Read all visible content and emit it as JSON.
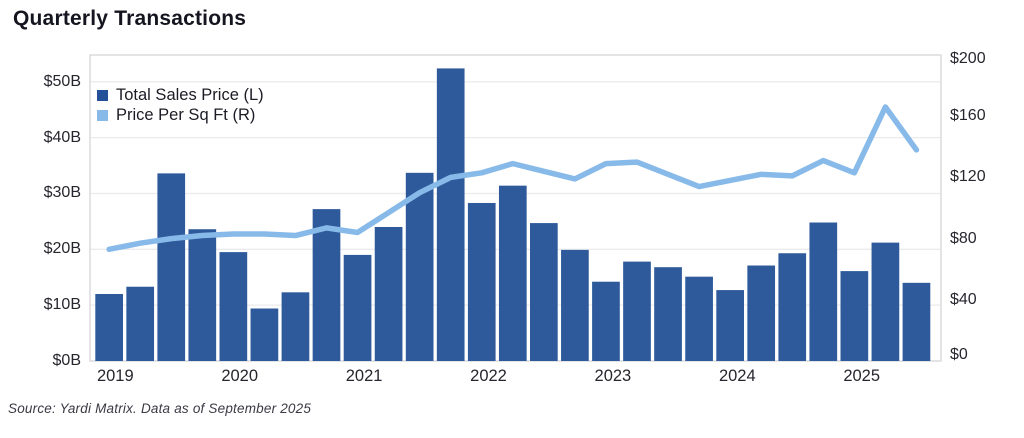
{
  "title": "Quarterly Transactions",
  "source_note": "Source: Yardi Matrix. Data as of September 2025",
  "legend": [
    {
      "label": "Total Sales Price (L)",
      "color": "#24509a"
    },
    {
      "label": "Price Per Sq Ft (R)",
      "color": "#88bae9"
    }
  ],
  "colors": {
    "bar": "#2e5a9b",
    "line": "#88bae9",
    "grid": "#ebebee",
    "plot_border": "#d6d6da",
    "text": "#26262e"
  },
  "chart_data": {
    "type": "bar",
    "title": "Quarterly Transactions",
    "categories": [
      "2019 Q1",
      "2019 Q2",
      "2019 Q3",
      "2019 Q4",
      "2020 Q1",
      "2020 Q2",
      "2020 Q3",
      "2020 Q4",
      "2021 Q1",
      "2021 Q2",
      "2021 Q3",
      "2021 Q4",
      "2022 Q1",
      "2022 Q2",
      "2022 Q3",
      "2022 Q4",
      "2023 Q1",
      "2023 Q2",
      "2023 Q3",
      "2023 Q4",
      "2024 Q1",
      "2024 Q2",
      "2024 Q3",
      "2024 Q4",
      "2025 Q1",
      "2025 Q2",
      "2025 Q3"
    ],
    "series": [
      {
        "name": "Total Sales Price (L)",
        "type": "bar",
        "axis": "left",
        "unit": "billion USD",
        "values": [
          12.0,
          13.3,
          33.6,
          23.6,
          19.5,
          9.4,
          12.3,
          27.2,
          19.0,
          24.0,
          33.7,
          52.4,
          28.3,
          31.4,
          24.7,
          19.9,
          14.2,
          17.8,
          16.8,
          15.1,
          12.7,
          17.1,
          19.3,
          24.8,
          16.1,
          21.2,
          14.0
        ]
      },
      {
        "name": "Price Per Sq Ft (R)",
        "type": "line",
        "axis": "right",
        "unit": "USD per sq ft",
        "values": [
          73,
          77,
          80,
          82,
          83,
          83,
          82,
          87,
          84,
          97,
          110,
          120,
          123,
          129,
          124,
          119,
          129,
          130,
          122,
          114,
          118,
          122,
          121,
          131,
          123,
          166,
          138
        ]
      }
    ],
    "x_tick_labels": [
      "2019",
      "2020",
      "2021",
      "2022",
      "2023",
      "2024",
      "2025"
    ],
    "left_axis": {
      "ticks": [
        "$0B",
        "$10B",
        "$20B",
        "$30B",
        "$40B",
        "$50B"
      ],
      "tick_values": [
        0,
        10,
        20,
        30,
        40,
        50
      ],
      "tick_max": 50,
      "plot_max": 54.8
    },
    "right_axis": {
      "ticks": [
        "$0",
        "$40",
        "$80",
        "$120",
        "$160",
        "$200"
      ],
      "tick_values": [
        0,
        40,
        80,
        120,
        160,
        200
      ],
      "tick_max": 200,
      "plot_max": 200
    },
    "grid": "horizontal-left-ticks",
    "legend_position": "top-left-inside"
  }
}
